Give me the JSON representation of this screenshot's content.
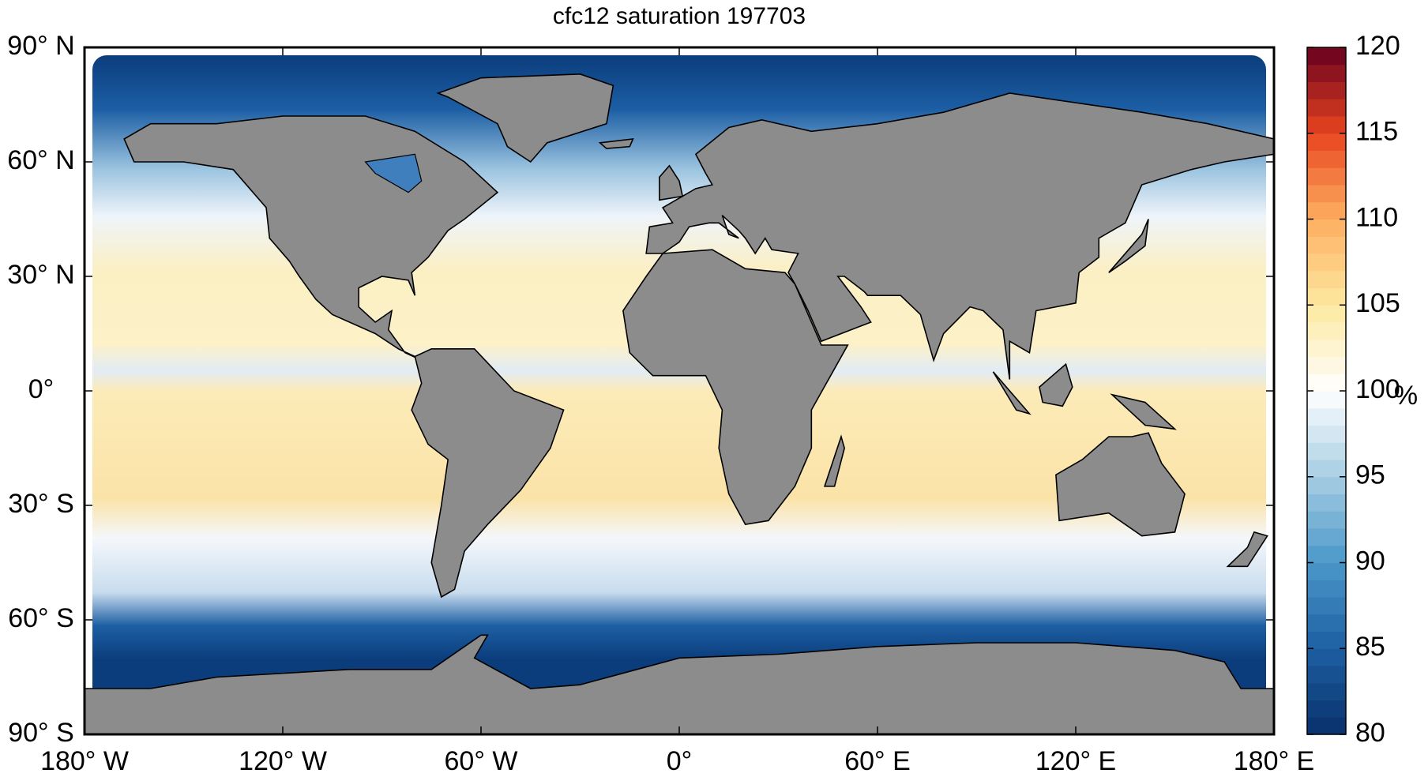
{
  "chart_data": {
    "type": "map",
    "title": "cfc12 saturation 197703",
    "xlim": [
      -180,
      180
    ],
    "ylim": [
      -90,
      90
    ],
    "xticks": [
      {
        "value": -180,
        "label": "180° W"
      },
      {
        "value": -120,
        "label": "120° W"
      },
      {
        "value": -60,
        "label": "60° W"
      },
      {
        "value": 0,
        "label": "0°"
      },
      {
        "value": 60,
        "label": "60° E"
      },
      {
        "value": 120,
        "label": "120° E"
      },
      {
        "value": 180,
        "label": "180° E"
      }
    ],
    "yticks": [
      {
        "value": -90,
        "label": "90° S"
      },
      {
        "value": -60,
        "label": "60° S"
      },
      {
        "value": -30,
        "label": "30° S"
      },
      {
        "value": 0,
        "label": "0°"
      },
      {
        "value": 30,
        "label": "30° N"
      },
      {
        "value": 60,
        "label": "60° N"
      },
      {
        "value": 90,
        "label": "90° N"
      }
    ],
    "colorbar": {
      "label": "%",
      "clim": [
        80,
        120
      ],
      "ticks": [
        80,
        85,
        90,
        95,
        100,
        105,
        110,
        115,
        120
      ],
      "colormap": [
        "#08306b",
        "#1d5fa3",
        "#4a98c9",
        "#a6cde3",
        "#ffffff",
        "#fde9a0",
        "#fdae61",
        "#e8451e",
        "#67001f"
      ]
    }
  }
}
